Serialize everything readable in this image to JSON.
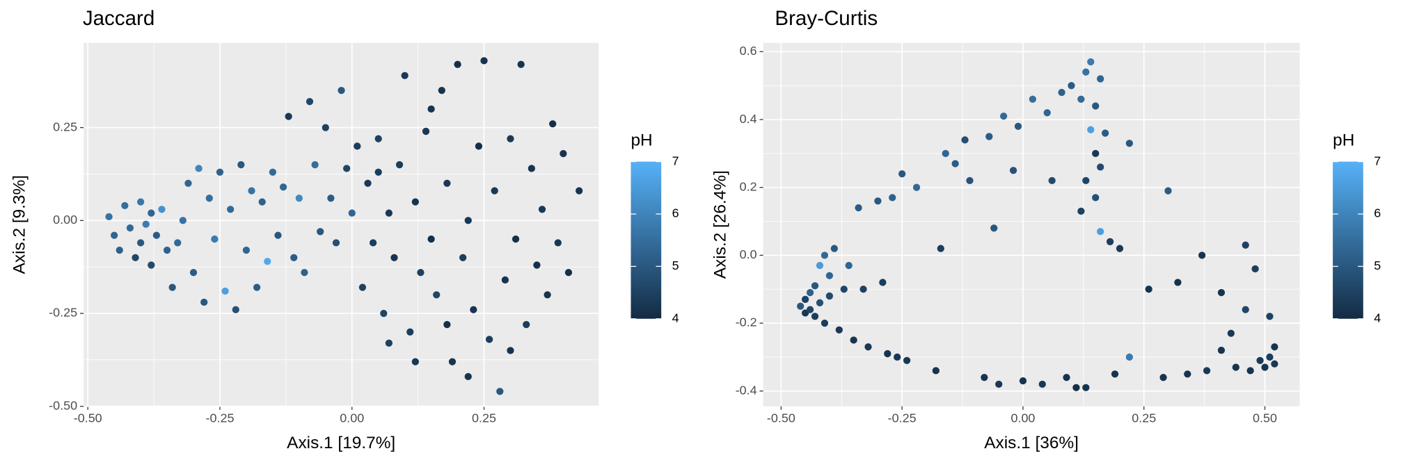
{
  "chart_data": [
    {
      "type": "scatter",
      "title": "Jaccard",
      "x_label": "Axis.1   [19.7%]",
      "y_label": "Axis.2   [9.3%]",
      "xlim": [
        -0.508,
        0.467
      ],
      "ylim": [
        -0.5,
        0.478
      ],
      "xticks": [
        {
          "value": -0.5,
          "label": "-0.50"
        },
        -0.25,
        {
          "value": 0,
          "label": "0.00"
        },
        0.25
      ],
      "yticks": [
        {
          "value": -0.5,
          "label": "-0.50"
        },
        -0.25,
        {
          "value": 0,
          "label": "0.00"
        },
        0.25
      ],
      "grid": true,
      "colorbar": {
        "title": "pH",
        "lim": [
          4,
          7
        ],
        "ticks": [
          4,
          5,
          6,
          7
        ],
        "colors": [
          "#132B43",
          "#56B1F7"
        ]
      },
      "x": [
        -0.46,
        -0.45,
        -0.44,
        -0.43,
        -0.42,
        -0.41,
        -0.4,
        -0.4,
        -0.39,
        -0.38,
        -0.38,
        -0.37,
        -0.36,
        -0.35,
        -0.34,
        -0.33,
        -0.32,
        -0.31,
        -0.3,
        -0.29,
        -0.28,
        -0.27,
        -0.26,
        -0.25,
        -0.24,
        -0.23,
        -0.22,
        -0.21,
        -0.2,
        -0.19,
        -0.18,
        -0.17,
        -0.16,
        -0.15,
        -0.14,
        -0.13,
        -0.12,
        -0.11,
        -0.1,
        -0.09,
        -0.08,
        -0.07,
        -0.06,
        -0.05,
        -0.04,
        -0.03,
        -0.02,
        -0.01,
        0.0,
        0.01,
        0.02,
        0.03,
        0.04,
        0.05,
        0.06,
        0.07,
        0.08,
        0.09,
        0.1,
        0.11,
        0.12,
        0.13,
        0.14,
        0.15,
        0.16,
        0.17,
        0.18,
        0.19,
        0.2,
        0.21,
        0.22,
        0.23,
        0.24,
        0.25,
        0.26,
        0.27,
        0.28,
        0.29,
        0.3,
        0.31,
        0.32,
        0.33,
        0.34,
        0.35,
        0.36,
        0.37,
        0.38,
        0.39,
        0.4,
        0.41,
        0.43,
        0.07,
        0.15,
        0.22,
        0.12,
        0.3,
        0.05,
        0.18
      ],
      "y": [
        0.01,
        -0.04,
        -0.08,
        0.04,
        -0.02,
        -0.1,
        0.05,
        -0.06,
        -0.01,
        0.02,
        -0.12,
        -0.04,
        0.03,
        -0.08,
        -0.18,
        -0.06,
        0.0,
        0.1,
        -0.14,
        0.14,
        -0.22,
        0.06,
        -0.05,
        0.13,
        -0.19,
        0.03,
        -0.24,
        0.15,
        -0.08,
        0.08,
        -0.18,
        0.05,
        -0.11,
        0.13,
        -0.04,
        0.09,
        0.28,
        -0.1,
        0.06,
        -0.14,
        0.32,
        0.15,
        -0.03,
        0.25,
        0.06,
        -0.06,
        0.35,
        0.14,
        0.02,
        0.2,
        -0.18,
        0.1,
        -0.06,
        0.22,
        -0.25,
        0.02,
        -0.1,
        0.15,
        0.39,
        -0.3,
        0.05,
        -0.14,
        0.24,
        -0.05,
        -0.2,
        0.35,
        0.1,
        -0.38,
        0.42,
        -0.1,
        0.0,
        -0.24,
        0.2,
        0.43,
        -0.32,
        0.08,
        -0.46,
        -0.16,
        0.22,
        -0.05,
        0.42,
        -0.28,
        0.14,
        -0.12,
        0.03,
        -0.2,
        0.26,
        -0.06,
        0.18,
        -0.14,
        0.08,
        -0.33,
        0.3,
        -0.42,
        -0.38,
        -0.35,
        0.13,
        -0.28
      ],
      "color_values": [
        5.6,
        5.3,
        5.2,
        5.5,
        5.4,
        4.6,
        5.7,
        5.0,
        5.8,
        5.3,
        4.7,
        5.1,
        6.3,
        5.2,
        5.0,
        5.4,
        5.6,
        5.3,
        5.1,
        6.0,
        5.0,
        5.5,
        5.8,
        5.2,
        6.6,
        5.4,
        4.8,
        5.0,
        5.3,
        5.6,
        5.1,
        5.2,
        6.8,
        5.4,
        5.0,
        5.3,
        4.3,
        5.1,
        6.1,
        5.2,
        4.6,
        5.5,
        5.0,
        4.5,
        5.1,
        4.8,
        5.0,
        4.6,
        5.3,
        4.4,
        4.5,
        4.3,
        4.4,
        4.5,
        4.6,
        4.3,
        4.2,
        4.4,
        4.3,
        4.4,
        4.2,
        4.5,
        4.3,
        4.1,
        4.6,
        4.2,
        4.3,
        4.2,
        4.1,
        4.4,
        4.3,
        4.2,
        4.1,
        4.2,
        4.4,
        4.3,
        5.0,
        4.2,
        4.3,
        4.1,
        4.2,
        4.4,
        4.2,
        4.1,
        4.3,
        4.2,
        4.1,
        4.3,
        4.2,
        4.1,
        4.2,
        4.5,
        4.2,
        4.2,
        4.3,
        4.2,
        4.4,
        4.1
      ]
    },
    {
      "type": "scatter",
      "title": "Bray-Curtis",
      "x_label": "Axis.1   [36%]",
      "y_label": "Axis.2   [26.4%]",
      "xlim": [
        -0.537,
        0.572
      ],
      "ylim": [
        -0.445,
        0.626
      ],
      "xticks": [
        {
          "value": -0.5,
          "label": "-0.50"
        },
        -0.25,
        {
          "value": 0,
          "label": "0.00"
        },
        0.25,
        {
          "value": 0.5,
          "label": "0.50"
        }
      ],
      "yticks": [
        -0.4,
        -0.2,
        {
          "value": 0,
          "label": "0.0"
        },
        0.2,
        0.4,
        0.6
      ],
      "grid": true,
      "colorbar": {
        "title": "pH",
        "lim": [
          4,
          7
        ],
        "ticks": [
          4,
          5,
          6,
          7
        ],
        "colors": [
          "#132B43",
          "#56B1F7"
        ]
      },
      "x": [
        -0.46,
        -0.45,
        -0.45,
        -0.44,
        -0.44,
        -0.43,
        -0.43,
        -0.42,
        -0.42,
        -0.41,
        -0.41,
        -0.4,
        -0.4,
        -0.39,
        -0.38,
        -0.37,
        -0.36,
        -0.35,
        -0.34,
        -0.33,
        -0.32,
        -0.3,
        -0.29,
        -0.28,
        -0.27,
        -0.26,
        -0.25,
        -0.24,
        -0.22,
        -0.18,
        -0.17,
        -0.16,
        -0.14,
        -0.12,
        -0.11,
        -0.08,
        -0.07,
        -0.06,
        -0.05,
        -0.04,
        -0.02,
        -0.01,
        0.0,
        0.02,
        0.04,
        0.05,
        0.06,
        0.08,
        0.09,
        0.1,
        0.11,
        0.12,
        0.12,
        0.13,
        0.13,
        0.14,
        0.14,
        0.15,
        0.15,
        0.15,
        0.16,
        0.16,
        0.16,
        0.17,
        0.13,
        0.18,
        0.19,
        0.2,
        0.22,
        0.22,
        0.26,
        0.29,
        0.3,
        0.32,
        0.34,
        0.37,
        0.38,
        0.41,
        0.41,
        0.43,
        0.44,
        0.46,
        0.46,
        0.47,
        0.48,
        0.49,
        0.5,
        0.51,
        0.51,
        0.52,
        0.52
      ],
      "y": [
        -0.15,
        -0.13,
        -0.17,
        -0.11,
        -0.16,
        -0.18,
        -0.09,
        -0.03,
        -0.14,
        0.0,
        -0.2,
        -0.06,
        -0.12,
        0.02,
        -0.22,
        -0.1,
        -0.03,
        -0.25,
        0.14,
        -0.1,
        -0.27,
        0.16,
        -0.08,
        -0.29,
        0.17,
        -0.3,
        0.24,
        -0.31,
        0.2,
        -0.34,
        0.02,
        0.3,
        0.27,
        0.34,
        0.22,
        -0.36,
        0.35,
        0.08,
        -0.38,
        0.41,
        0.25,
        0.38,
        -0.37,
        0.46,
        -0.38,
        0.42,
        0.22,
        0.48,
        -0.36,
        0.5,
        -0.39,
        0.13,
        0.46,
        0.54,
        0.22,
        0.37,
        0.57,
        0.17,
        0.3,
        0.44,
        0.52,
        0.26,
        0.07,
        0.36,
        -0.39,
        0.04,
        -0.35,
        0.02,
        -0.3,
        0.33,
        -0.1,
        -0.36,
        0.19,
        -0.08,
        -0.35,
        0.0,
        -0.34,
        -0.11,
        -0.28,
        -0.23,
        -0.33,
        0.03,
        -0.16,
        -0.34,
        -0.04,
        -0.31,
        -0.33,
        -0.3,
        -0.18,
        -0.32,
        -0.27
      ],
      "color_values": [
        5.0,
        4.5,
        4.3,
        5.2,
        4.6,
        4.4,
        5.0,
        6.5,
        4.8,
        5.4,
        4.4,
        5.3,
        4.7,
        5.0,
        4.3,
        4.6,
        5.3,
        4.2,
        5.1,
        4.5,
        4.3,
        5.0,
        4.4,
        4.2,
        5.2,
        4.3,
        5.0,
        4.3,
        5.4,
        4.2,
        4.4,
        5.3,
        5.1,
        4.8,
        4.9,
        4.2,
        5.1,
        5.0,
        4.3,
        5.4,
        4.9,
        5.0,
        4.2,
        5.5,
        4.3,
        5.3,
        4.7,
        5.2,
        4.2,
        5.1,
        4.1,
        4.5,
        5.4,
        5.6,
        4.6,
        6.6,
        5.8,
        4.8,
        4.3,
        5.0,
        5.3,
        4.7,
        6.6,
        5.1,
        4.2,
        4.4,
        4.2,
        4.3,
        5.8,
        5.0,
        4.2,
        4.2,
        5.1,
        4.2,
        4.2,
        4.2,
        4.3,
        4.2,
        4.2,
        4.3,
        4.2,
        4.5,
        4.6,
        4.2,
        4.4,
        4.3,
        4.2,
        4.4,
        4.5,
        4.3,
        4.2
      ]
    }
  ]
}
